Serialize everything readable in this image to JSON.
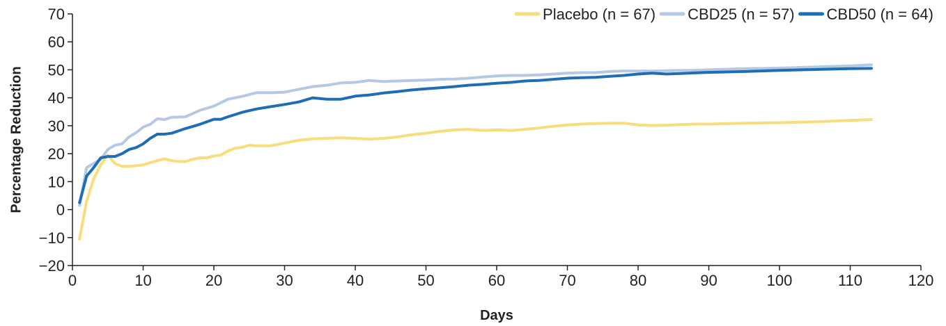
{
  "chart_data": {
    "type": "line",
    "title": "",
    "xlabel": "Days",
    "ylabel": "Percentage Reduction",
    "xlim": [
      0,
      120
    ],
    "ylim": [
      -20,
      70
    ],
    "xticks": [
      0,
      10,
      20,
      30,
      40,
      50,
      60,
      70,
      80,
      90,
      100,
      110,
      120
    ],
    "yticks": [
      -20,
      -10,
      0,
      10,
      20,
      30,
      40,
      50,
      60,
      70
    ],
    "grid": false,
    "legend_position": "top-right",
    "series": [
      {
        "name": "Placebo (n = 67)",
        "color": "#f9dc7c",
        "x": [
          1,
          2,
          3,
          4,
          5,
          6,
          7,
          8,
          9,
          10,
          11,
          12,
          13,
          14,
          15,
          16,
          17,
          18,
          19,
          20,
          21,
          22,
          23,
          24,
          25,
          26,
          28,
          30,
          32,
          34,
          36,
          38,
          40,
          42,
          44,
          46,
          48,
          50,
          52,
          54,
          56,
          58,
          60,
          62,
          64,
          66,
          68,
          70,
          72,
          74,
          76,
          78,
          80,
          82,
          84,
          86,
          88,
          90,
          95,
          100,
          105,
          110,
          113
        ],
        "y": [
          -10.5,
          3,
          11,
          16,
          19.5,
          16.5,
          15.5,
          15.5,
          15.7,
          16,
          16.8,
          17.5,
          18.2,
          17.5,
          17.2,
          17.2,
          18,
          18.5,
          18.5,
          19.2,
          19.5,
          21,
          22,
          22.3,
          23,
          22.8,
          22.8,
          23.8,
          24.8,
          25.3,
          25.5,
          25.7,
          25.5,
          25.2,
          25.5,
          26,
          26.8,
          27.3,
          28,
          28.5,
          28.7,
          28.3,
          28.5,
          28.3,
          28.7,
          29.2,
          29.8,
          30.3,
          30.6,
          30.8,
          30.9,
          30.9,
          30.3,
          30.1,
          30.2,
          30.4,
          30.6,
          30.6,
          30.9,
          31.1,
          31.4,
          31.9,
          32.2
        ]
      },
      {
        "name": "CBD25 (n = 57)",
        "color": "#b4c9e6",
        "x": [
          1,
          2,
          3,
          4,
          5,
          6,
          7,
          8,
          9,
          10,
          11,
          12,
          13,
          14,
          16,
          18,
          20,
          22,
          24,
          26,
          28,
          30,
          32,
          34,
          36,
          38,
          40,
          42,
          44,
          46,
          48,
          50,
          52,
          54,
          56,
          58,
          60,
          62,
          64,
          66,
          68,
          70,
          72,
          74,
          76,
          78,
          80,
          82,
          84,
          86,
          88,
          90,
          95,
          100,
          105,
          110,
          113
        ],
        "y": [
          1.5,
          15,
          16.5,
          18,
          21.5,
          23,
          23.5,
          26,
          27.5,
          29.5,
          30.5,
          32.5,
          32.2,
          33,
          33.2,
          35.5,
          37,
          39.5,
          40.5,
          41.8,
          41.8,
          42,
          43,
          44,
          44.5,
          45.3,
          45.5,
          46.2,
          45.8,
          46,
          46.2,
          46.3,
          46.6,
          46.7,
          47,
          47.4,
          47.8,
          48,
          48,
          48.2,
          48.5,
          48.8,
          49,
          49,
          49.4,
          49.6,
          49.6,
          49.6,
          49.7,
          49.8,
          49.8,
          50,
          50.4,
          50.6,
          51,
          51.4,
          51.8
        ]
      },
      {
        "name": "CBD50 (n = 64)",
        "color": "#1f6db4",
        "x": [
          1,
          2,
          3,
          4,
          5,
          6,
          7,
          8,
          9,
          10,
          11,
          12,
          13,
          14,
          16,
          18,
          20,
          21,
          22,
          24,
          26,
          28,
          30,
          32,
          34,
          36,
          38,
          40,
          42,
          44,
          46,
          48,
          50,
          52,
          54,
          56,
          58,
          60,
          62,
          64,
          66,
          68,
          70,
          72,
          74,
          76,
          78,
          80,
          82,
          84,
          86,
          88,
          90,
          95,
          100,
          105,
          110,
          113
        ],
        "y": [
          2.5,
          12,
          15,
          18.5,
          19,
          19,
          20,
          21.5,
          22.2,
          23.5,
          25.5,
          27,
          27,
          27.3,
          29,
          30.5,
          32.3,
          32.3,
          33.2,
          34.8,
          36,
          36.8,
          37.6,
          38.5,
          40,
          39.5,
          39.5,
          40.6,
          41,
          41.7,
          42.2,
          42.8,
          43.2,
          43.6,
          44,
          44.5,
          44.8,
          45.2,
          45.5,
          46,
          46.2,
          46.6,
          47,
          47.2,
          47.3,
          47.7,
          48,
          48.5,
          48.8,
          48.5,
          48.7,
          48.9,
          49.1,
          49.4,
          49.8,
          50.1,
          50.4,
          50.5
        ]
      }
    ]
  }
}
